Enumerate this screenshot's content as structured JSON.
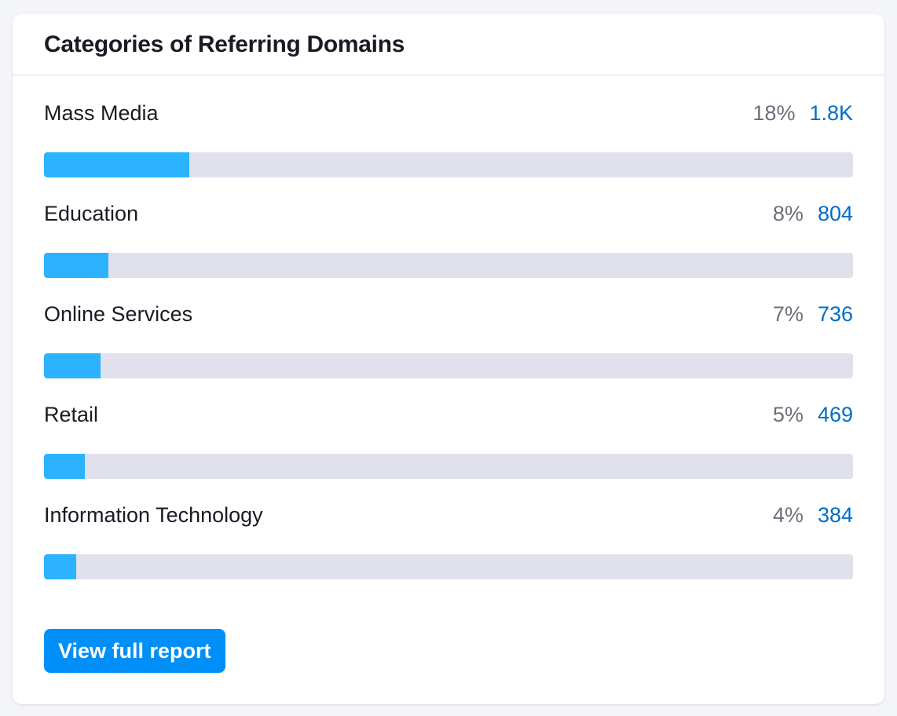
{
  "widget": {
    "title": "Categories of Referring Domains",
    "button_label": "View full report"
  },
  "categories": [
    {
      "label": "Mass Media",
      "percent_text": "18%",
      "count_text": "1.8K",
      "share": 0.18
    },
    {
      "label": "Education",
      "percent_text": "8%",
      "count_text": "804",
      "share": 0.08
    },
    {
      "label": "Online Services",
      "percent_text": "7%",
      "count_text": "736",
      "share": 0.07
    },
    {
      "label": "Retail",
      "percent_text": "5%",
      "count_text": "469",
      "share": 0.05
    },
    {
      "label": "Information Technology",
      "percent_text": "4%",
      "count_text": "384",
      "share": 0.04
    }
  ],
  "colors": {
    "bar_fill": "#2bb3ff",
    "bar_track": "#e0e1ec",
    "count_link": "#006dca",
    "button": "#008ff8"
  }
}
